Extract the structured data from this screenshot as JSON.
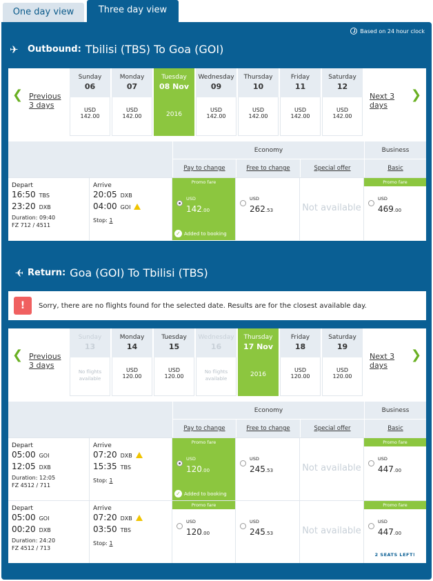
{
  "tabs": [
    {
      "label": "One day view"
    },
    {
      "label": "Three day view"
    }
  ],
  "clock_note": "Based on 24 hour clock",
  "outbound": {
    "prefix": "Outbound:",
    "route": "Tbilisi (TBS) To Goa (GOI)",
    "prev": "Previous 3 days",
    "next": "Next 3 days",
    "days": [
      {
        "name": "Sunday",
        "num": "06",
        "cur": "USD",
        "amt": "142.00"
      },
      {
        "name": "Monday",
        "num": "07",
        "cur": "USD",
        "amt": "142.00"
      },
      {
        "name": "Tuesday",
        "num": "08 Nov",
        "year": "2016",
        "selected": true
      },
      {
        "name": "Wednesday",
        "num": "09",
        "cur": "USD",
        "amt": "142.00"
      },
      {
        "name": "Thursday",
        "num": "10",
        "cur": "USD",
        "amt": "142.00"
      },
      {
        "name": "Friday",
        "num": "11",
        "cur": "USD",
        "amt": "142.00"
      },
      {
        "name": "Saturday",
        "num": "12",
        "cur": "USD",
        "amt": "142.00"
      }
    ],
    "flights": [
      {
        "depart_label": "Depart",
        "arrive_label": "Arrive",
        "d1": "16:50",
        "d1ap": "TBS",
        "d2": "23:20",
        "d2ap": "DXB",
        "a1": "20:05",
        "a1ap": "DXB",
        "a2": "04:00",
        "a2ap": "GOI",
        "duration": "Duration: 09:40",
        "flight": "FZ 712 / 4511",
        "stop_label": "Stop:",
        "stops": "1",
        "pay": {
          "promo": "Promo fare",
          "cur": "USD",
          "int": "142",
          "dec": ".00",
          "added": "Added to booking"
        },
        "free": {
          "cur": "USD",
          "int": "262",
          "dec": ".53"
        },
        "special": "Not available",
        "basic": {
          "promo": "Promo fare",
          "cur": "USD",
          "int": "469",
          "dec": ".00"
        }
      }
    ]
  },
  "alert_text": "Sorry, there are no flights found for the selected date. Results are for the closest available day.",
  "return": {
    "prefix": "Return:",
    "route": "Goa (GOI) To Tbilisi (TBS)",
    "prev": "Previous 3 days",
    "next": "Next 3 days",
    "days": [
      {
        "name": "Sunday",
        "num": "13",
        "na": "No flights available",
        "disabled": true
      },
      {
        "name": "Monday",
        "num": "14",
        "cur": "USD",
        "amt": "120.00"
      },
      {
        "name": "Tuesday",
        "num": "15",
        "cur": "USD",
        "amt": "120.00"
      },
      {
        "name": "Wednesday",
        "num": "16",
        "na": "No flights available",
        "disabled": true
      },
      {
        "name": "Thursday",
        "num": "17 Nov",
        "year": "2016",
        "selected": true
      },
      {
        "name": "Friday",
        "num": "18",
        "cur": "USD",
        "amt": "120.00"
      },
      {
        "name": "Saturday",
        "num": "19",
        "cur": "USD",
        "amt": "120.00"
      }
    ],
    "flights": [
      {
        "depart_label": "Depart",
        "arrive_label": "Arrive",
        "d1": "05:00",
        "d1ap": "GOI",
        "d2": "12:05",
        "d2ap": "DXB",
        "a1": "07:20",
        "a1ap": "DXB",
        "a2": "15:35",
        "a2ap": "TBS",
        "duration": "Duration: 12:05",
        "flight": "FZ 4512 / 711",
        "stop_label": "Stop:",
        "stops": "1",
        "pay": {
          "promo": "Promo fare",
          "cur": "USD",
          "int": "120",
          "dec": ".00",
          "added": "Added to booking"
        },
        "free": {
          "cur": "USD",
          "int": "245",
          "dec": ".53"
        },
        "special": "Not available",
        "basic": {
          "promo": "Promo fare",
          "cur": "USD",
          "int": "447",
          "dec": ".00"
        }
      },
      {
        "depart_label": "Depart",
        "arrive_label": "Arrive",
        "d1": "05:00",
        "d1ap": "GOI",
        "d2": "00:20",
        "d2ap": "DXB",
        "a1": "07:20",
        "a1ap": "DXB",
        "a2": "03:50",
        "a2ap": "TBS",
        "duration": "Duration: 24:20",
        "flight": "FZ 4512 / 713",
        "stop_label": "Stop:",
        "stops": "1",
        "pay": {
          "promo": "Promo fare",
          "cur": "USD",
          "int": "120",
          "dec": ".00"
        },
        "free": {
          "cur": "USD",
          "int": "245",
          "dec": ".53"
        },
        "special": "Not available",
        "basic": {
          "promo": "Promo fare",
          "cur": "USD",
          "int": "447",
          "dec": ".00",
          "seats": "2 SEATS LEFT!"
        }
      }
    ]
  },
  "fare_headers": {
    "economy": "Economy",
    "business": "Business",
    "pay": "Pay to change",
    "free": "Free to change",
    "special": "Special offer",
    "basic": "Basic"
  }
}
